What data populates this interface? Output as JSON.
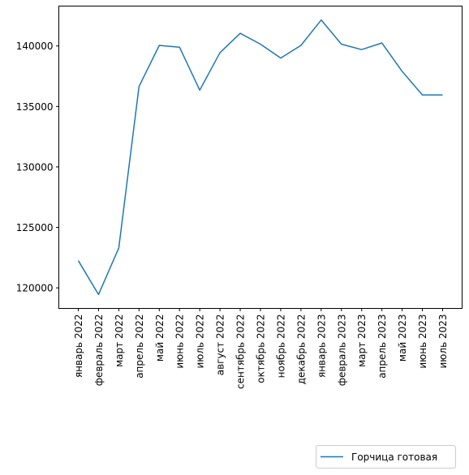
{
  "chart_data": {
    "type": "line",
    "title": "",
    "xlabel": "",
    "ylabel": "",
    "categories": [
      "январь 2022",
      "февраль 2022",
      "март 2022",
      "апрель 2022",
      "май 2022",
      "июнь 2022",
      "июль 2022",
      "август 2022",
      "сентябрь 2022",
      "октябрь 2022",
      "ноябрь 2022",
      "декабрь 2022",
      "январь 2023",
      "февраль 2023",
      "март 2023",
      "апрель 2023",
      "май 2023",
      "июнь 2023",
      "июль 2023"
    ],
    "series": [
      {
        "name": "Горчица готовая",
        "color": "#1f77b4",
        "values": [
          122250,
          119450,
          123300,
          136650,
          140050,
          139900,
          136350,
          139450,
          141050,
          140150,
          139000,
          140050,
          142150,
          140150,
          139700,
          140250,
          137900,
          135950,
          135950
        ]
      }
    ],
    "yticks": [
      120000,
      125000,
      130000,
      135000,
      140000
    ],
    "ylim": [
      118300,
      143300
    ],
    "grid": false,
    "legend": "bottom-right, outside plot"
  }
}
